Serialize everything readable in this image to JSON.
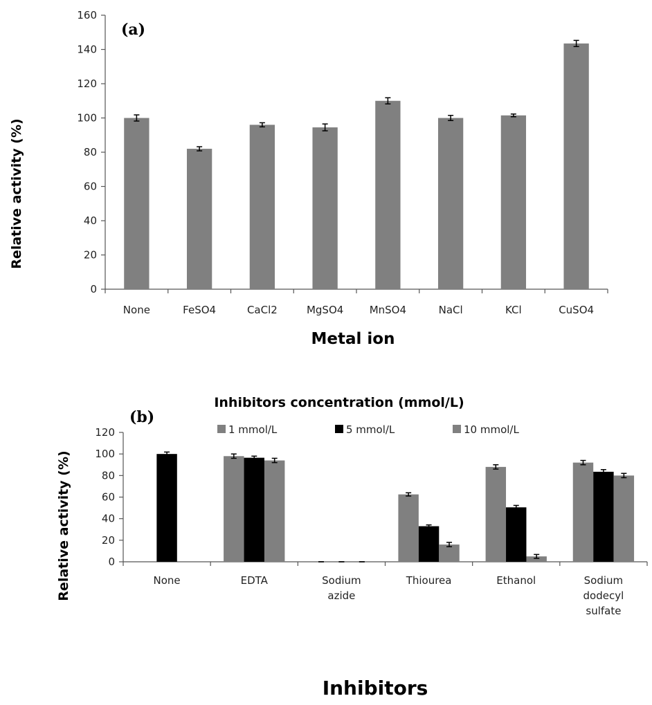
{
  "chart_data": [
    {
      "type": "bar",
      "panel_label": "(a)",
      "title": "",
      "xlabel": "Metal ion",
      "ylabel": "Relative activity (%)",
      "ylim": [
        0,
        160
      ],
      "yticks": [
        0,
        20,
        40,
        60,
        80,
        100,
        120,
        140,
        160
      ],
      "categories": [
        "None",
        "FeSO4",
        "CaCl2",
        "MgSO4",
        "MnSO4",
        "NaCl",
        "KCl",
        "CuSO4"
      ],
      "series": [
        {
          "color": "#808080",
          "values": [
            100,
            82,
            96,
            94.5,
            110,
            100,
            101.5,
            143.5
          ],
          "errors": [
            1.8,
            1.2,
            1.2,
            2.0,
            1.8,
            1.5,
            0.8,
            1.8
          ]
        }
      ],
      "grid": false
    },
    {
      "type": "bar",
      "panel_label": "(b)",
      "title": "Inhibitors concentration (mmol/L)",
      "xlabel": "Inhibitors",
      "ylabel": "Relative activity (%)",
      "ylim": [
        0,
        120
      ],
      "yticks": [
        0,
        20,
        40,
        60,
        80,
        100,
        120
      ],
      "categories": [
        [
          "None"
        ],
        [
          "EDTA"
        ],
        [
          "Sodium",
          "azide"
        ],
        [
          "Thiourea"
        ],
        [
          "Ethanol"
        ],
        [
          "Sodium",
          "dodecyl",
          "sulfate"
        ]
      ],
      "legend_position": "top",
      "series": [
        {
          "name": "1 mmol/L",
          "color": "#808080",
          "values": [
            null,
            98,
            0,
            62.5,
            88,
            92
          ],
          "errors": [
            null,
            2.0,
            0,
            1.5,
            2.0,
            2.0
          ]
        },
        {
          "name": "5 mmol/L",
          "color": "#000000",
          "values": [
            100,
            96.5,
            0,
            33,
            50.5,
            83.5
          ],
          "errors": [
            1.8,
            1.5,
            0,
            1.2,
            1.8,
            2.0
          ]
        },
        {
          "name": "10 mmol/L",
          "color": "#808080",
          "values": [
            null,
            94,
            0,
            16,
            5,
            80
          ],
          "errors": [
            null,
            2.0,
            0,
            2.0,
            1.8,
            2.0
          ]
        }
      ],
      "grid": false
    }
  ]
}
